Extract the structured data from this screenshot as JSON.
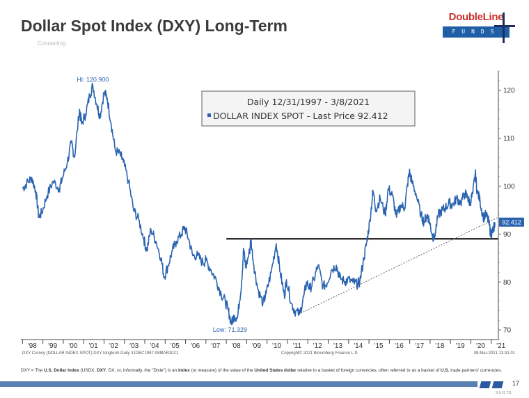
{
  "slide": {
    "title": "Dollar Spot Index (DXY) Long-Term",
    "subtitle": "Connecting",
    "logo_top": "DoubleLine",
    "logo_bottom": "FUNDS",
    "footnote_parts": [
      {
        "t": "DXY = The ",
        "b": false
      },
      {
        "t": "U.S. Dollar Index",
        "b": true
      },
      {
        "t": " (USDX, ",
        "b": false
      },
      {
        "t": "DXY",
        "b": true
      },
      {
        "t": ", DX, or, informally, the \"Dixie\") is an ",
        "b": false
      },
      {
        "t": "index",
        "b": true
      },
      {
        "t": " (or measure) of the value of the ",
        "b": false
      },
      {
        "t": "United States dollar",
        "b": true
      },
      {
        "t": " relative to a basket of foreign currencies, often referred to as a basket of ",
        "b": false
      },
      {
        "t": "U.S.",
        "b": true
      },
      {
        "t": " trade partners' currencies.",
        "b": false
      }
    ],
    "page_number": "17",
    "page_code": "3-9-21 TG",
    "colors": {
      "accent_red": "#c8312c",
      "accent_blue": "#1f5fa8",
      "bar_blue": "#5a7fb1"
    }
  },
  "chart_data": {
    "type": "line",
    "title": "",
    "xlabel": "",
    "ylabel": "",
    "ylim": [
      68,
      124
    ],
    "xlim": [
      1997.92,
      2021.35
    ],
    "y_ticks": [
      70,
      80,
      90,
      100,
      110,
      120
    ],
    "x_ticks": [
      {
        "label": "'98",
        "x": 1998.0
      },
      {
        "label": "'99",
        "x": 1999.0
      },
      {
        "label": "'00",
        "x": 2000.0
      },
      {
        "label": "'01",
        "x": 2001.0
      },
      {
        "label": "'02",
        "x": 2002.0
      },
      {
        "label": "'03",
        "x": 2003.0
      },
      {
        "label": "'04",
        "x": 2004.0
      },
      {
        "label": "'05",
        "x": 2005.0
      },
      {
        "label": "'06",
        "x": 2006.0
      },
      {
        "label": "'07",
        "x": 2007.0
      },
      {
        "label": "'08",
        "x": 2008.0
      },
      {
        "label": "'09",
        "x": 2009.0
      },
      {
        "label": "'10",
        "x": 2010.0
      },
      {
        "label": "'11",
        "x": 2011.0
      },
      {
        "label": "'12",
        "x": 2012.0
      },
      {
        "label": "'13",
        "x": 2013.0
      },
      {
        "label": "'14",
        "x": 2014.0
      },
      {
        "label": "'15",
        "x": 2015.0
      },
      {
        "label": "'16",
        "x": 2016.0
      },
      {
        "label": "'17",
        "x": 2017.0
      },
      {
        "label": "'18",
        "x": 2018.0
      },
      {
        "label": "'19",
        "x": 2019.0
      },
      {
        "label": "'20",
        "x": 2020.0
      },
      {
        "label": "'21",
        "x": 2021.0
      }
    ],
    "legend": {
      "line1": "Daily 12/31/1997 - 3/8/2021",
      "line2": "DOLLAR INDEX SPOT - Last Price 92.412",
      "placement": "top-center"
    },
    "series": [
      {
        "name": "DOLLAR INDEX SPOT",
        "color": "#2a63b0",
        "points": [
          [
            1998.0,
            99.5
          ],
          [
            1998.2,
            100.5
          ],
          [
            1998.45,
            101.8
          ],
          [
            1998.65,
            99.0
          ],
          [
            1998.8,
            93.5
          ],
          [
            1998.95,
            94.5
          ],
          [
            1999.2,
            98.0
          ],
          [
            1999.5,
            101.0
          ],
          [
            1999.8,
            99.5
          ],
          [
            1999.95,
            101.5
          ],
          [
            2000.2,
            105.0
          ],
          [
            2000.4,
            109.0
          ],
          [
            2000.55,
            106.0
          ],
          [
            2000.8,
            116.0
          ],
          [
            2000.9,
            113.0
          ],
          [
            2001.1,
            115.0
          ],
          [
            2001.3,
            119.0
          ],
          [
            2001.45,
            120.9
          ],
          [
            2001.65,
            117.0
          ],
          [
            2001.8,
            114.5
          ],
          [
            2002.0,
            119.5
          ],
          [
            2002.15,
            118.5
          ],
          [
            2002.35,
            113.0
          ],
          [
            2002.55,
            107.5
          ],
          [
            2002.8,
            106.5
          ],
          [
            2002.95,
            105.0
          ],
          [
            2003.2,
            101.0
          ],
          [
            2003.45,
            95.0
          ],
          [
            2003.7,
            93.0
          ],
          [
            2003.95,
            89.0
          ],
          [
            2004.1,
            86.5
          ],
          [
            2004.3,
            91.0
          ],
          [
            2004.55,
            88.5
          ],
          [
            2004.8,
            85.0
          ],
          [
            2004.95,
            81.0
          ],
          [
            2005.15,
            83.5
          ],
          [
            2005.35,
            86.5
          ],
          [
            2005.55,
            88.5
          ],
          [
            2005.8,
            90.0
          ],
          [
            2005.95,
            91.5
          ],
          [
            2006.15,
            89.0
          ],
          [
            2006.35,
            85.5
          ],
          [
            2006.6,
            85.5
          ],
          [
            2006.85,
            84.0
          ],
          [
            2007.0,
            84.5
          ],
          [
            2007.25,
            82.5
          ],
          [
            2007.5,
            80.5
          ],
          [
            2007.75,
            77.5
          ],
          [
            2007.95,
            76.0
          ],
          [
            2008.1,
            74.0
          ],
          [
            2008.25,
            71.329
          ],
          [
            2008.4,
            73.0
          ],
          [
            2008.55,
            72.5
          ],
          [
            2008.75,
            80.0
          ],
          [
            2008.85,
            87.0
          ],
          [
            2008.95,
            83.0
          ],
          [
            2009.15,
            86.5
          ],
          [
            2009.2,
            89.0
          ],
          [
            2009.35,
            83.5
          ],
          [
            2009.55,
            78.5
          ],
          [
            2009.8,
            75.5
          ],
          [
            2009.95,
            77.5
          ],
          [
            2010.2,
            82.0
          ],
          [
            2010.45,
            88.0
          ],
          [
            2010.65,
            82.0
          ],
          [
            2010.85,
            77.0
          ],
          [
            2010.95,
            80.5
          ],
          [
            2011.2,
            75.5
          ],
          [
            2011.35,
            74.0
          ],
          [
            2011.6,
            73.3
          ],
          [
            2011.8,
            77.0
          ],
          [
            2011.95,
            80.0
          ],
          [
            2012.1,
            78.5
          ],
          [
            2012.3,
            80.5
          ],
          [
            2012.5,
            83.5
          ],
          [
            2012.75,
            79.0
          ],
          [
            2012.95,
            79.8
          ],
          [
            2013.15,
            82.5
          ],
          [
            2013.4,
            83.5
          ],
          [
            2013.55,
            81.0
          ],
          [
            2013.8,
            80.0
          ],
          [
            2013.95,
            80.5
          ],
          [
            2014.2,
            80.0
          ],
          [
            2014.4,
            79.5
          ],
          [
            2014.55,
            80.0
          ],
          [
            2014.75,
            85.0
          ],
          [
            2014.9,
            88.5
          ],
          [
            2015.05,
            93.0
          ],
          [
            2015.2,
            99.0
          ],
          [
            2015.35,
            95.0
          ],
          [
            2015.55,
            97.5
          ],
          [
            2015.8,
            94.0
          ],
          [
            2015.95,
            99.5
          ],
          [
            2016.15,
            98.0
          ],
          [
            2016.35,
            93.5
          ],
          [
            2016.55,
            96.0
          ],
          [
            2016.75,
            95.5
          ],
          [
            2016.9,
            100.5
          ],
          [
            2016.98,
            103.0
          ],
          [
            2017.1,
            101.0
          ],
          [
            2017.3,
            98.5
          ],
          [
            2017.55,
            94.0
          ],
          [
            2017.7,
            92.5
          ],
          [
            2017.85,
            94.0
          ],
          [
            2017.95,
            93.0
          ],
          [
            2018.1,
            90.0
          ],
          [
            2018.2,
            89.0
          ],
          [
            2018.4,
            94.0
          ],
          [
            2018.6,
            95.0
          ],
          [
            2018.75,
            95.5
          ],
          [
            2018.95,
            96.5
          ],
          [
            2019.1,
            96.0
          ],
          [
            2019.3,
            97.5
          ],
          [
            2019.5,
            96.5
          ],
          [
            2019.7,
            98.5
          ],
          [
            2019.85,
            97.5
          ],
          [
            2019.95,
            96.5
          ],
          [
            2020.1,
            98.5
          ],
          [
            2020.22,
            102.8
          ],
          [
            2020.3,
            99.0
          ],
          [
            2020.45,
            97.0
          ],
          [
            2020.6,
            93.5
          ],
          [
            2020.75,
            94.0
          ],
          [
            2020.88,
            92.5
          ],
          [
            2020.98,
            89.9
          ],
          [
            2021.05,
            90.5
          ],
          [
            2021.12,
            91.0
          ],
          [
            2021.18,
            92.412
          ]
        ]
      }
    ],
    "reference_lines": [
      {
        "kind": "horizontal",
        "y": 89.0,
        "x_from": 2008.0,
        "x_to": 2021.35,
        "color": "#000000"
      },
      {
        "kind": "trend",
        "from": [
          2011.65,
          73.5
        ],
        "to": [
          2021.35,
          93.5
        ],
        "color": "#666666"
      }
    ],
    "annotations": [
      {
        "label": "Hi: 120.900",
        "x": 2001.45,
        "y": 120.9
      },
      {
        "label": "Low: 71.329",
        "x": 2008.25,
        "y": 71.329
      }
    ],
    "last_price": {
      "label": "92.412",
      "y": 92.412
    },
    "source_left": "DXY Curncy (DOLLAR INDEX SPOT) DXY longterm  Daily 31DEC1997-08MAR2021",
    "source_center": "Copyright© 2021 Bloomberg Finance L.P.",
    "source_right": "08-Mar-2021 13:31:01",
    "grid": false
  }
}
